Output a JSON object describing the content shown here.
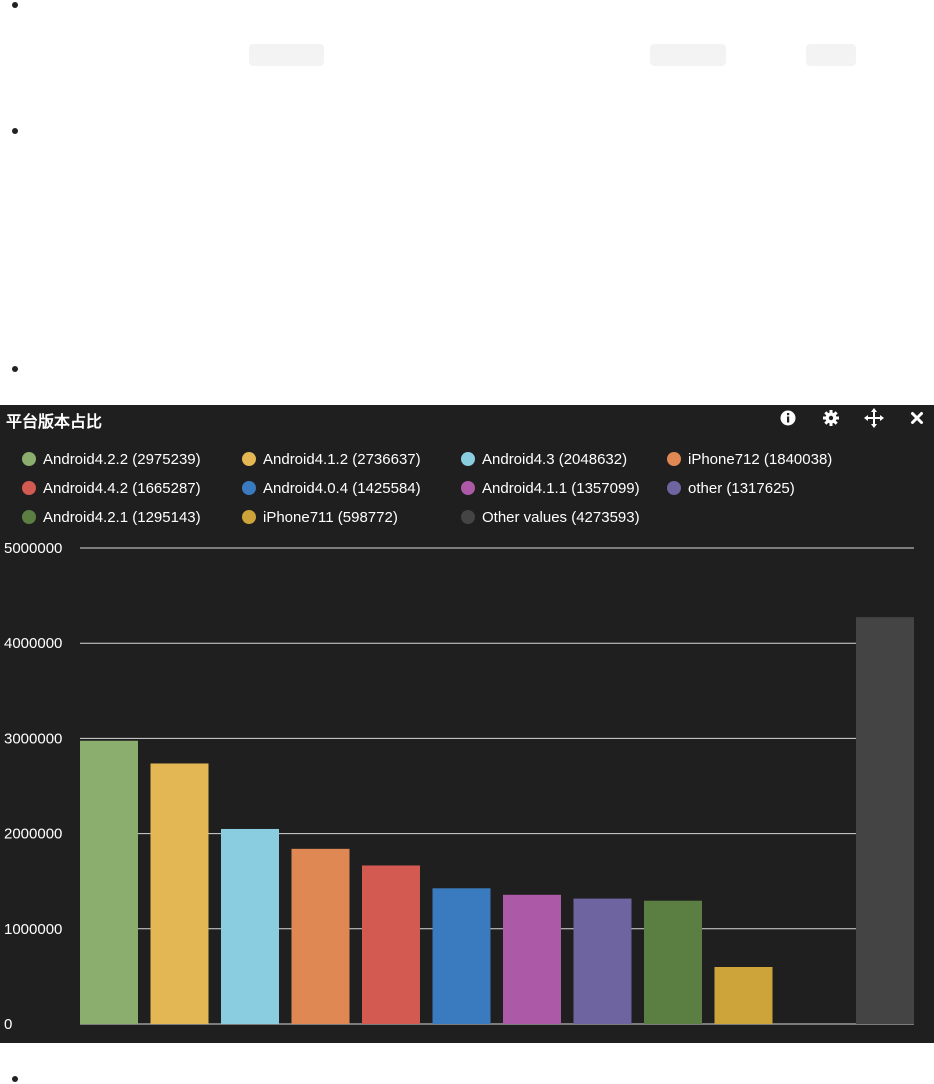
{
  "widget": {
    "title": "平台版本占比",
    "tools": {
      "info_icon": "info-icon",
      "settings_icon": "gear-icon",
      "move_icon": "move-icon",
      "close_icon": "close-icon"
    }
  },
  "chart_data": {
    "type": "bar",
    "title": "",
    "xlabel": "",
    "ylabel": "",
    "ylim": [
      0,
      5000000
    ],
    "yticks": [
      "0",
      "1000000",
      "2000000",
      "3000000",
      "4000000",
      "5000000"
    ],
    "grid": true,
    "legend_position": "top",
    "series": [
      {
        "name": "Android4.2.2 (2975239)",
        "value": 2975239,
        "color": "#8bad6e"
      },
      {
        "name": "Android4.1.2 (2736637)",
        "value": 2736637,
        "color": "#e3b753"
      },
      {
        "name": "Android4.3 (2048632)",
        "value": 2048632,
        "color": "#8acde0"
      },
      {
        "name": "iPhone712 (1840038)",
        "value": 1840038,
        "color": "#e08853"
      },
      {
        "name": "Android4.4.2 (1665287)",
        "value": 1665287,
        "color": "#d35a50"
      },
      {
        "name": "Android4.0.4 (1425584)",
        "value": 1425584,
        "color": "#3a7bbf"
      },
      {
        "name": "Android4.1.1 (1357099)",
        "value": 1357099,
        "color": "#ac59a8"
      },
      {
        "name": "other (1317625)",
        "value": 1317625,
        "color": "#6d64a0"
      },
      {
        "name": "Android4.2.1 (1295143)",
        "value": 1295143,
        "color": "#5b7f43"
      },
      {
        "name": "iPhone711 (598772)",
        "value": 598772,
        "color": "#cda43a"
      },
      {
        "name": "Other values (4273593)",
        "value": 4273593,
        "color": "#444444"
      }
    ]
  }
}
